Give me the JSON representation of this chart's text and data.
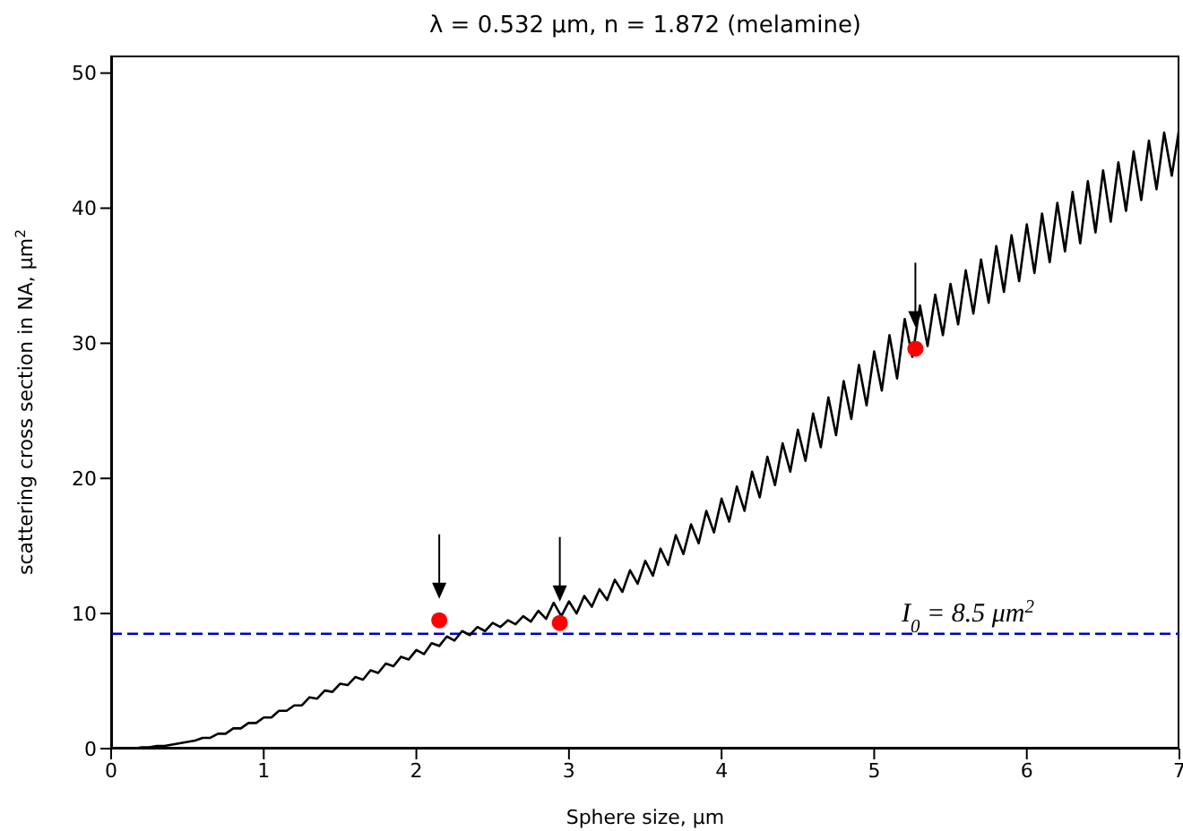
{
  "chart_data": {
    "type": "line",
    "title": "λ = 0.532 μm, n = 1.872 (melamine)",
    "xlabel": "Sphere size, μm",
    "ylabel": "scattering cross section in NA, μm$^{2}$",
    "xlim": [
      0,
      7
    ],
    "xticks": [
      0,
      1,
      2,
      3,
      4,
      5,
      6,
      7
    ],
    "ylim": [
      0,
      51.3
    ],
    "yticks": [
      0,
      10,
      20,
      30,
      40,
      50
    ],
    "series": [
      {
        "color": "#000000",
        "line_style": "solid",
        "x": [
          0,
          0.05,
          0.1,
          0.15,
          0.2,
          0.25,
          0.3,
          0.35,
          0.4,
          0.45,
          0.5,
          0.55,
          0.6,
          0.65,
          0.7,
          0.75,
          0.8,
          0.85,
          0.9,
          0.95,
          1.0,
          1.05,
          1.1,
          1.15,
          1.2,
          1.25,
          1.3,
          1.35,
          1.4,
          1.45,
          1.5,
          1.55,
          1.6,
          1.65,
          1.7,
          1.75,
          1.8,
          1.85,
          1.9,
          1.95,
          2.0,
          2.05,
          2.1,
          2.15,
          2.2,
          2.25,
          2.3,
          2.35,
          2.4,
          2.45,
          2.5,
          2.55,
          2.6,
          2.65,
          2.7,
          2.75,
          2.8,
          2.85,
          2.9,
          2.95,
          3.0,
          3.05,
          3.1,
          3.15,
          3.2,
          3.25,
          3.3,
          3.35,
          3.4,
          3.45,
          3.5,
          3.55,
          3.6,
          3.65,
          3.7,
          3.75,
          3.8,
          3.85,
          3.9,
          3.95,
          4.0,
          4.05,
          4.1,
          4.15,
          4.2,
          4.25,
          4.3,
          4.35,
          4.4,
          4.45,
          4.5,
          4.55,
          4.6,
          4.65,
          4.7,
          4.75,
          4.8,
          4.85,
          4.9,
          4.95,
          5.0,
          5.05,
          5.1,
          5.15,
          5.2,
          5.25,
          5.3,
          5.35,
          5.4,
          5.45,
          5.5,
          5.55,
          5.6,
          5.65,
          5.7,
          5.75,
          5.8,
          5.85,
          5.9,
          5.95,
          6.0,
          6.05,
          6.1,
          6.15,
          6.2,
          6.25,
          6.3,
          6.35,
          6.4,
          6.45,
          6.5,
          6.55,
          6.6,
          6.65,
          6.7,
          6.75,
          6.8,
          6.85,
          6.9,
          6.95,
          7.0
        ],
        "values": [
          0,
          0,
          0,
          0,
          0.1,
          0.1,
          0.2,
          0.2,
          0.3,
          0.4,
          0.5,
          0.6,
          0.8,
          0.8,
          1.1,
          1.1,
          1.5,
          1.5,
          1.9,
          1.9,
          2.3,
          2.3,
          2.8,
          2.8,
          3.2,
          3.2,
          3.8,
          3.7,
          4.3,
          4.2,
          4.8,
          4.7,
          5.3,
          5.1,
          5.8,
          5.6,
          6.3,
          6.1,
          6.8,
          6.6,
          7.3,
          7.0,
          7.8,
          7.6,
          8.3,
          8.0,
          8.7,
          8.4,
          9.0,
          8.7,
          9.3,
          9.0,
          9.5,
          9.2,
          9.8,
          9.4,
          10.2,
          9.6,
          10.8,
          9.8,
          10.9,
          10.0,
          11.3,
          10.5,
          11.8,
          11.0,
          12.5,
          11.6,
          13.2,
          12.2,
          13.9,
          12.8,
          14.8,
          13.6,
          15.8,
          14.4,
          16.6,
          15.2,
          17.6,
          16.0,
          18.5,
          16.8,
          19.4,
          17.6,
          20.5,
          18.6,
          21.6,
          19.5,
          22.6,
          20.5,
          23.6,
          21.3,
          24.8,
          22.3,
          26.0,
          23.2,
          27.2,
          24.4,
          28.4,
          25.4,
          29.4,
          26.5,
          30.6,
          27.4,
          31.8,
          29.0,
          32.8,
          29.8,
          33.6,
          30.6,
          34.4,
          31.4,
          35.4,
          32.2,
          36.2,
          33.0,
          37.2,
          33.8,
          38.0,
          34.6,
          38.8,
          35.2,
          39.6,
          36.0,
          40.4,
          36.8,
          41.2,
          37.4,
          42.0,
          38.2,
          42.8,
          39.0,
          43.4,
          39.8,
          44.2,
          40.6,
          45.0,
          41.4,
          45.6,
          42.4,
          46.0
        ]
      },
      {
        "type": "scatter",
        "color": "#ff0000",
        "marker": "circle",
        "x": [
          2.15,
          2.94,
          5.27
        ],
        "values": [
          9.5,
          9.3,
          29.6
        ]
      }
    ],
    "ref_lines": [
      {
        "axis": "y",
        "value": 8.5,
        "label": "I$_{0}$ = 8.5 μm$^{2}$",
        "color": "#0000cc",
        "line_style": "dashed"
      }
    ]
  }
}
